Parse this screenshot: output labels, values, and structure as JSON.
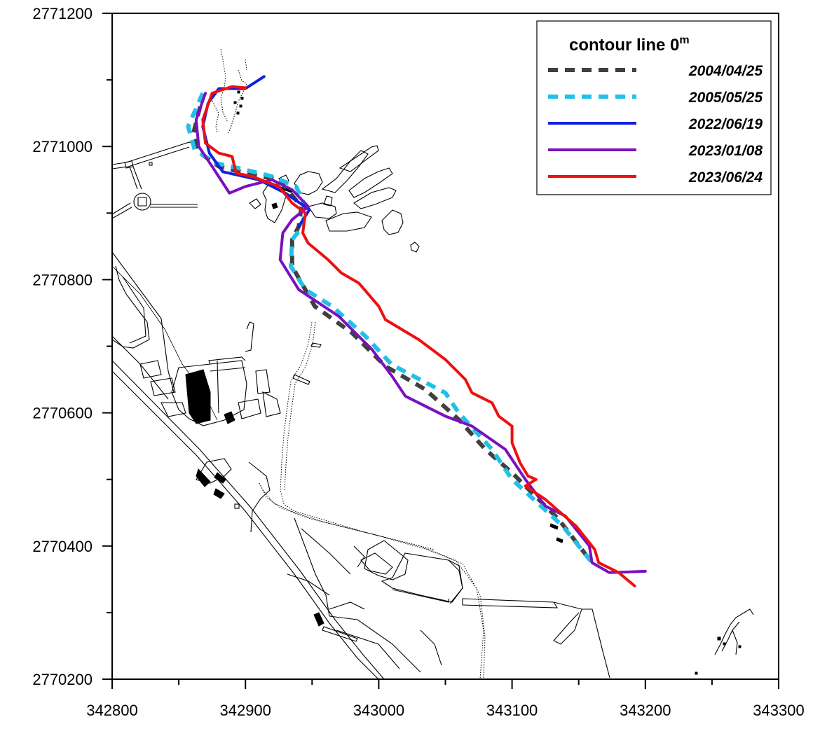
{
  "chart_data": {
    "type": "line",
    "title": "contour line  0",
    "title_superscript": "m",
    "xlim": [
      342800,
      343300
    ],
    "ylim": [
      2770200,
      2771200
    ],
    "x_ticks": [
      342800,
      342900,
      343000,
      343100,
      343200,
      343300
    ],
    "y_ticks": [
      2770200,
      2770400,
      2770600,
      2770800,
      2771000,
      2771200
    ],
    "legend_position": "top-right",
    "grid": false,
    "series": [
      {
        "name": "2004/04/25",
        "color": "#404040",
        "style": "dashed",
        "points": [
          [
            342866,
            2771060
          ],
          [
            342861,
            2771020
          ],
          [
            342866,
            2770990
          ],
          [
            342880,
            2770970
          ],
          [
            342900,
            2770960
          ],
          [
            342925,
            2770950
          ],
          [
            342942,
            2770910
          ],
          [
            342940,
            2770880
          ],
          [
            342935,
            2770860
          ],
          [
            342935,
            2770820
          ],
          [
            342952,
            2770760
          ],
          [
            342980,
            2770720
          ],
          [
            343005,
            2770670
          ],
          [
            343035,
            2770635
          ],
          [
            343060,
            2770590
          ],
          [
            343080,
            2770545
          ],
          [
            343100,
            2770510
          ],
          [
            343135,
            2770440
          ],
          [
            343160,
            2770375
          ]
        ]
      },
      {
        "name": "2005/05/25",
        "color": "#22c0e8",
        "style": "dashed",
        "points": [
          [
            342868,
            2771080
          ],
          [
            342857,
            2771030
          ],
          [
            342862,
            2770995
          ],
          [
            342878,
            2770975
          ],
          [
            342900,
            2770965
          ],
          [
            342920,
            2770955
          ],
          [
            342938,
            2770940
          ],
          [
            342945,
            2770910
          ],
          [
            342943,
            2770880
          ],
          [
            342935,
            2770860
          ],
          [
            342934,
            2770820
          ],
          [
            342945,
            2770785
          ],
          [
            342965,
            2770760
          ],
          [
            342990,
            2770715
          ],
          [
            343010,
            2770672
          ],
          [
            343050,
            2770630
          ],
          [
            343060,
            2770600
          ],
          [
            343085,
            2770545
          ],
          [
            343100,
            2770500
          ],
          [
            343138,
            2770430
          ],
          [
            343160,
            2770375
          ]
        ]
      },
      {
        "name": "2022/06/19",
        "color": "#1020e0",
        "style": "solid",
        "points": [
          [
            342914,
            2771105
          ],
          [
            342900,
            2771087
          ],
          [
            342880,
            2771087
          ],
          [
            342872,
            2771065
          ],
          [
            342868,
            2771030
          ],
          [
            342873,
            2770990
          ],
          [
            342883,
            2770962
          ],
          [
            342910,
            2770950
          ],
          [
            342930,
            2770930
          ],
          [
            342948,
            2770905
          ],
          [
            342940,
            2770880
          ]
        ]
      },
      {
        "name": "2023/01/08",
        "color": "#7a10c0",
        "style": "solid",
        "points": [
          [
            342870,
            2771080
          ],
          [
            342863,
            2771040
          ],
          [
            342865,
            2771000
          ],
          [
            342875,
            2770970
          ],
          [
            342888,
            2770930
          ],
          [
            342900,
            2770940
          ],
          [
            342920,
            2770950
          ],
          [
            342935,
            2770935
          ],
          [
            342947,
            2770910
          ],
          [
            342935,
            2770890
          ],
          [
            342928,
            2770870
          ],
          [
            342926,
            2770830
          ],
          [
            342940,
            2770785
          ],
          [
            342970,
            2770745
          ],
          [
            342995,
            2770695
          ],
          [
            343010,
            2770655
          ],
          [
            343020,
            2770625
          ],
          [
            343050,
            2770595
          ],
          [
            343070,
            2770580
          ],
          [
            343095,
            2770545
          ],
          [
            343110,
            2770500
          ],
          [
            343125,
            2770460
          ],
          [
            343140,
            2770445
          ],
          [
            343158,
            2770400
          ],
          [
            343160,
            2770375
          ],
          [
            343173,
            2770360
          ],
          [
            343200,
            2770362
          ]
        ]
      },
      {
        "name": "2023/06/24",
        "color": "#ee1010",
        "style": "solid",
        "points": [
          [
            342900,
            2771088
          ],
          [
            342890,
            2771090
          ],
          [
            342875,
            2771080
          ],
          [
            342868,
            2771040
          ],
          [
            342870,
            2771005
          ],
          [
            342880,
            2770990
          ],
          [
            342890,
            2770985
          ],
          [
            342893,
            2770960
          ],
          [
            342905,
            2770955
          ],
          [
            342925,
            2770940
          ],
          [
            342935,
            2770915
          ],
          [
            342945,
            2770900
          ],
          [
            342943,
            2770870
          ],
          [
            342947,
            2770855
          ],
          [
            342962,
            2770830
          ],
          [
            342972,
            2770810
          ],
          [
            342985,
            2770795
          ],
          [
            343000,
            2770760
          ],
          [
            343005,
            2770740
          ],
          [
            343030,
            2770710
          ],
          [
            343050,
            2770680
          ],
          [
            343065,
            2770650
          ],
          [
            343070,
            2770630
          ],
          [
            343085,
            2770615
          ],
          [
            343090,
            2770595
          ],
          [
            343100,
            2770580
          ],
          [
            343100,
            2770555
          ],
          [
            343106,
            2770525
          ],
          [
            343112,
            2770505
          ],
          [
            343118,
            2770500
          ],
          [
            343110,
            2770490
          ],
          [
            343125,
            2770470
          ],
          [
            343148,
            2770430
          ],
          [
            343162,
            2770395
          ],
          [
            343165,
            2770375
          ],
          [
            343180,
            2770360
          ],
          [
            343192,
            2770340
          ]
        ]
      }
    ]
  }
}
